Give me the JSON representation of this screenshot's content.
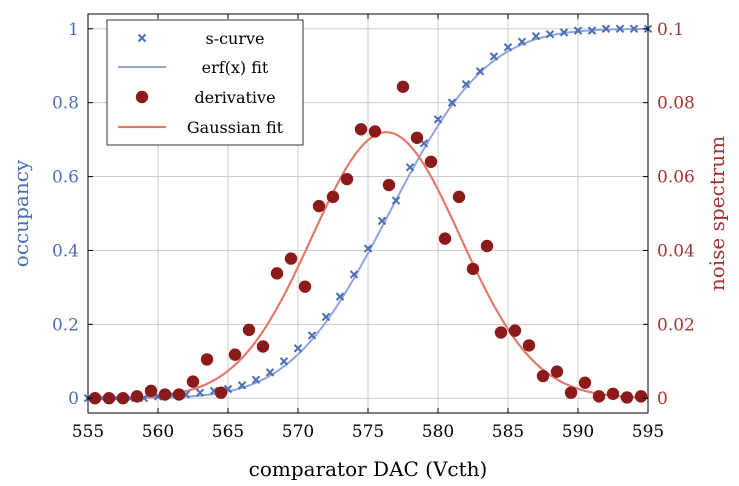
{
  "chart_data": {
    "type": "scatter",
    "xlabel": "comparator DAC (Vcth)",
    "ylabel_left": "occupancy",
    "ylabel_right": "noise spectrum",
    "xlim": [
      555,
      595
    ],
    "ylim_left": [
      -0.04,
      1.04
    ],
    "ylim_right": [
      -0.004,
      0.104
    ],
    "x_ticks": [
      555,
      560,
      565,
      570,
      575,
      580,
      585,
      590,
      595
    ],
    "y_ticks_left": [
      0,
      0.2,
      0.4,
      0.6,
      0.8,
      1
    ],
    "y_ticks_left_labels": [
      "0",
      "0.2",
      "0.4",
      "0.6",
      "0.8",
      "1"
    ],
    "y_ticks_right": [
      0,
      0.02,
      0.04,
      0.06,
      0.08,
      0.1
    ],
    "y_ticks_right_labels": [
      "0",
      "0.02",
      "0.04",
      "0.06",
      "0.08",
      "0.1"
    ],
    "grid": true,
    "legend_position": "top-left",
    "colors": {
      "left_axis": "#4a6eb5",
      "right_axis": "#a83232",
      "scurve": "#4a6eb5",
      "erf_fit": "#8fa4dc",
      "derivative": "#8b1a1a",
      "gaussian_fit": "#e07a6a",
      "grid": "#cccccc"
    },
    "series": [
      {
        "name": "s-curve",
        "axis": "left",
        "marker": "x",
        "x": [
          555,
          556,
          557,
          558,
          559,
          560,
          561,
          562,
          563,
          564,
          565,
          566,
          567,
          568,
          569,
          570,
          571,
          572,
          573,
          574,
          575,
          576,
          577,
          578,
          579,
          580,
          581,
          582,
          583,
          584,
          585,
          586,
          587,
          588,
          589,
          590,
          591,
          592,
          593,
          594,
          595
        ],
        "y": [
          0,
          0,
          0,
          0,
          0,
          0.005,
          0.01,
          0.01,
          0.015,
          0.02,
          0.025,
          0.035,
          0.05,
          0.07,
          0.1,
          0.135,
          0.17,
          0.22,
          0.275,
          0.335,
          0.405,
          0.48,
          0.535,
          0.625,
          0.69,
          0.755,
          0.8,
          0.85,
          0.885,
          0.925,
          0.95,
          0.965,
          0.98,
          0.985,
          0.99,
          0.995,
          0.995,
          1,
          1,
          1,
          1
        ]
      },
      {
        "name": "erf(x) fit",
        "axis": "left",
        "type": "line",
        "mu": 576.5,
        "sigma": 5.5
      },
      {
        "name": "derivative",
        "axis": "right",
        "marker": "circle",
        "x": [
          555.5,
          556.5,
          557.5,
          558.5,
          559.5,
          560.5,
          561.5,
          562.5,
          563.5,
          564.5,
          565.5,
          566.5,
          567.5,
          568.5,
          569.5,
          570.5,
          571.5,
          572.5,
          573.5,
          574.5,
          575.5,
          576.5,
          577.5,
          578.5,
          579.5,
          580.5,
          581.5,
          582.5,
          583.5,
          584.5,
          585.5,
          586.5,
          587.5,
          588.5,
          589.5,
          590.5,
          591.5,
          592.5,
          593.5,
          594.5
        ],
        "y": [
          0,
          0,
          0,
          0.0005,
          0.002,
          0.001,
          0.001,
          0.0045,
          0.0105,
          0.0015,
          0.0118,
          0.0185,
          0.014,
          0.0338,
          0.0378,
          0.0302,
          0.052,
          0.0545,
          0.0593,
          0.0728,
          0.0722,
          0.0577,
          0.0843,
          0.0705,
          0.064,
          0.0432,
          0.0545,
          0.035,
          0.0412,
          0.0178,
          0.0183,
          0.0143,
          0.006,
          0.0072,
          0.0015,
          0.0042,
          0.0005,
          0.0012,
          0.0002,
          0.0005
        ]
      },
      {
        "name": "Gaussian fit",
        "axis": "right",
        "type": "line",
        "mu": 576.3,
        "sigma": 5.3,
        "peak": 0.072
      }
    ]
  }
}
